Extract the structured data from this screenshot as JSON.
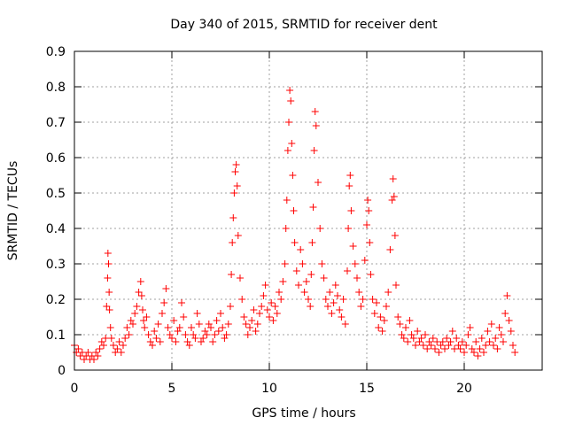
{
  "chart_data": {
    "type": "scatter",
    "title": "Day 340 of 2015, SRMTID for receiver dent",
    "xlabel": "GPS time / hours",
    "ylabel": "SRMTID / TECUs",
    "xlim": [
      0,
      24
    ],
    "ylim": [
      0,
      0.9
    ],
    "xticks": [
      0,
      5,
      10,
      15,
      20
    ],
    "xtick_labels": [
      "0",
      "5",
      "10",
      "15",
      "20"
    ],
    "yticks": [
      0,
      0.1,
      0.2,
      0.3,
      0.4,
      0.5,
      0.6,
      0.7,
      0.8,
      0.9
    ],
    "ytick_labels": [
      "0",
      "0.1",
      "0.2",
      "0.3",
      "0.4",
      "0.5",
      "0.6",
      "0.7",
      "0.8",
      "0.9"
    ],
    "grid": true,
    "marker": "+",
    "color": "#ff0000",
    "series": [
      {
        "name": "SRMTID",
        "x": [
          0.0,
          0.1,
          0.2,
          0.3,
          0.4,
          0.5,
          0.6,
          0.7,
          0.8,
          0.9,
          1.0,
          1.1,
          1.2,
          1.3,
          1.4,
          1.5,
          1.6,
          1.65,
          1.7,
          1.72,
          1.75,
          1.78,
          1.8,
          1.85,
          1.9,
          2.0,
          2.1,
          2.2,
          2.3,
          2.4,
          2.5,
          2.6,
          2.7,
          2.8,
          2.9,
          3.0,
          3.1,
          3.2,
          3.3,
          3.4,
          3.45,
          3.5,
          3.55,
          3.6,
          3.7,
          3.8,
          3.9,
          4.0,
          4.1,
          4.2,
          4.3,
          4.4,
          4.5,
          4.6,
          4.7,
          4.8,
          4.9,
          5.0,
          5.1,
          5.2,
          5.3,
          5.4,
          5.5,
          5.6,
          5.7,
          5.8,
          5.9,
          6.0,
          6.1,
          6.2,
          6.3,
          6.4,
          6.5,
          6.6,
          6.7,
          6.8,
          6.9,
          7.0,
          7.1,
          7.2,
          7.3,
          7.4,
          7.5,
          7.6,
          7.7,
          7.8,
          7.9,
          8.0,
          8.05,
          8.1,
          8.15,
          8.2,
          8.25,
          8.3,
          8.35,
          8.4,
          8.5,
          8.6,
          8.7,
          8.8,
          8.9,
          9.0,
          9.1,
          9.2,
          9.3,
          9.4,
          9.5,
          9.6,
          9.7,
          9.8,
          9.9,
          10.0,
          10.1,
          10.2,
          10.3,
          10.4,
          10.5,
          10.6,
          10.7,
          10.8,
          10.85,
          10.9,
          10.95,
          11.0,
          11.05,
          11.1,
          11.15,
          11.2,
          11.25,
          11.3,
          11.4,
          11.5,
          11.6,
          11.7,
          11.8,
          11.9,
          12.0,
          12.1,
          12.15,
          12.2,
          12.25,
          12.3,
          12.35,
          12.4,
          12.5,
          12.6,
          12.7,
          12.8,
          12.9,
          13.0,
          13.1,
          13.2,
          13.3,
          13.4,
          13.5,
          13.6,
          13.7,
          13.8,
          13.9,
          14.0,
          14.05,
          14.1,
          14.15,
          14.2,
          14.3,
          14.4,
          14.5,
          14.6,
          14.7,
          14.8,
          14.9,
          15.0,
          15.05,
          15.1,
          15.15,
          15.2,
          15.3,
          15.4,
          15.5,
          15.6,
          15.7,
          15.8,
          15.9,
          16.0,
          16.1,
          16.2,
          16.3,
          16.35,
          16.4,
          16.45,
          16.5,
          16.6,
          16.7,
          16.8,
          16.9,
          17.0,
          17.1,
          17.2,
          17.3,
          17.4,
          17.5,
          17.6,
          17.7,
          17.8,
          17.9,
          18.0,
          18.1,
          18.2,
          18.3,
          18.4,
          18.5,
          18.6,
          18.7,
          18.8,
          18.9,
          19.0,
          19.1,
          19.2,
          19.3,
          19.4,
          19.5,
          19.6,
          19.7,
          19.8,
          19.9,
          20.0,
          20.1,
          20.2,
          20.3,
          20.4,
          20.5,
          20.6,
          20.7,
          20.8,
          20.9,
          21.0,
          21.1,
          21.2,
          21.3,
          21.4,
          21.5,
          21.6,
          21.7,
          21.8,
          21.9,
          22.0,
          22.1,
          22.2,
          22.3,
          22.4,
          22.5,
          22.6
        ],
        "y": [
          0.07,
          0.05,
          0.06,
          0.04,
          0.05,
          0.03,
          0.04,
          0.05,
          0.03,
          0.04,
          0.03,
          0.05,
          0.04,
          0.06,
          0.08,
          0.07,
          0.09,
          0.18,
          0.26,
          0.33,
          0.3,
          0.22,
          0.17,
          0.12,
          0.09,
          0.07,
          0.05,
          0.06,
          0.08,
          0.05,
          0.07,
          0.09,
          0.12,
          0.1,
          0.14,
          0.13,
          0.16,
          0.18,
          0.22,
          0.25,
          0.21,
          0.17,
          0.14,
          0.12,
          0.15,
          0.1,
          0.08,
          0.07,
          0.11,
          0.09,
          0.13,
          0.08,
          0.16,
          0.19,
          0.23,
          0.12,
          0.1,
          0.09,
          0.14,
          0.08,
          0.11,
          0.12,
          0.19,
          0.15,
          0.1,
          0.08,
          0.07,
          0.12,
          0.1,
          0.09,
          0.16,
          0.13,
          0.08,
          0.09,
          0.11,
          0.1,
          0.13,
          0.12,
          0.08,
          0.1,
          0.14,
          0.11,
          0.16,
          0.12,
          0.09,
          0.1,
          0.13,
          0.18,
          0.27,
          0.36,
          0.43,
          0.5,
          0.56,
          0.58,
          0.52,
          0.38,
          0.26,
          0.2,
          0.15,
          0.13,
          0.1,
          0.12,
          0.14,
          0.17,
          0.11,
          0.13,
          0.16,
          0.18,
          0.21,
          0.24,
          0.17,
          0.15,
          0.19,
          0.14,
          0.18,
          0.16,
          0.22,
          0.2,
          0.25,
          0.3,
          0.4,
          0.48,
          0.62,
          0.7,
          0.79,
          0.76,
          0.64,
          0.55,
          0.45,
          0.36,
          0.28,
          0.24,
          0.34,
          0.3,
          0.22,
          0.25,
          0.2,
          0.18,
          0.27,
          0.36,
          0.46,
          0.62,
          0.73,
          0.69,
          0.53,
          0.4,
          0.3,
          0.26,
          0.2,
          0.18,
          0.22,
          0.16,
          0.19,
          0.24,
          0.21,
          0.17,
          0.15,
          0.2,
          0.13,
          0.28,
          0.4,
          0.52,
          0.55,
          0.45,
          0.35,
          0.3,
          0.26,
          0.22,
          0.18,
          0.2,
          0.31,
          0.41,
          0.48,
          0.45,
          0.36,
          0.27,
          0.2,
          0.16,
          0.19,
          0.12,
          0.15,
          0.11,
          0.14,
          0.18,
          0.22,
          0.34,
          0.48,
          0.54,
          0.49,
          0.38,
          0.24,
          0.15,
          0.13,
          0.1,
          0.09,
          0.12,
          0.08,
          0.14,
          0.1,
          0.09,
          0.07,
          0.11,
          0.08,
          0.09,
          0.07,
          0.1,
          0.06,
          0.08,
          0.07,
          0.09,
          0.06,
          0.08,
          0.05,
          0.07,
          0.08,
          0.06,
          0.09,
          0.07,
          0.08,
          0.11,
          0.06,
          0.09,
          0.07,
          0.06,
          0.08,
          0.05,
          0.07,
          0.1,
          0.12,
          0.06,
          0.05,
          0.08,
          0.04,
          0.06,
          0.09,
          0.05,
          0.07,
          0.11,
          0.08,
          0.13,
          0.07,
          0.09,
          0.06,
          0.12,
          0.1,
          0.08,
          0.16,
          0.21,
          0.14,
          0.11,
          0.07,
          0.05
        ]
      }
    ]
  }
}
